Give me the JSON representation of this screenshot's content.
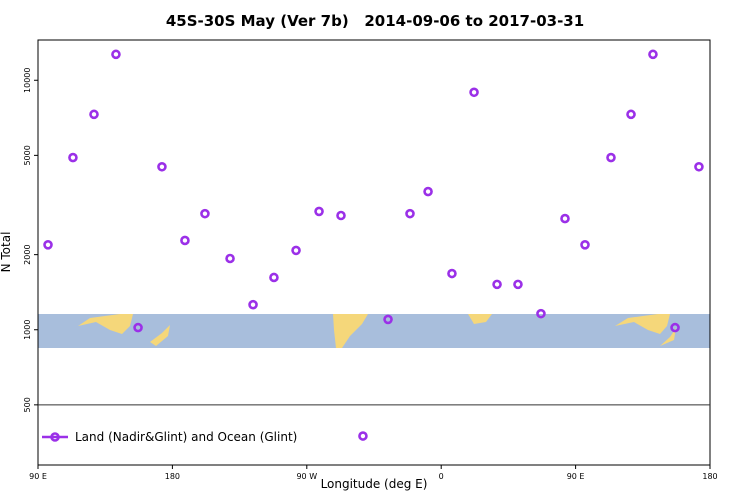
{
  "chart_data": {
    "type": "scatter",
    "title": "45S-30S May (Ver 7b)   2014-09-06 to 2017-03-31",
    "xlabel": "Longitude (deg E)",
    "ylabel": "N Total",
    "series": [
      {
        "name": "Land (Nadir&Glint) and Ocean (Glint)",
        "color": "#9b30e8",
        "x": [
          96.7,
          113.4,
          127.5,
          142.2,
          157,
          173,
          188.4,
          201.8,
          218.6,
          234,
          248,
          262.8,
          278.2,
          292.9,
          307.6,
          324.4,
          339.1,
          351.2,
          367.2,
          382,
          397.4,
          411.4,
          426.8,
          442.9,
          456.3,
          473.7,
          487.1,
          501.8,
          516.6,
          532.6
        ],
        "values": [
          2190,
          4900,
          7300,
          12700,
          1020,
          4500,
          2280,
          2920,
          1930,
          1260,
          1620,
          2080,
          2980,
          2870,
          375,
          1100,
          2920,
          3580,
          1680,
          8950,
          1520,
          1520,
          1160,
          2790,
          2190,
          4900,
          7300,
          12700,
          1020,
          4500
        ]
      }
    ],
    "xlim": [
      90,
      540
    ],
    "xticks": [
      {
        "value": 90,
        "label": "90 E"
      },
      180,
      {
        "value": 270,
        "label": "90 W"
      },
      {
        "value": 360,
        "label": "0"
      },
      {
        "value": 450,
        "label": "90 E"
      },
      {
        "value": 540,
        "label": "180"
      }
    ],
    "ylim": [
      287,
      14500
    ],
    "yticks": [
      500,
      1000,
      2000,
      5000,
      10000
    ],
    "log_y": true,
    "hline": 500,
    "legend": "lower left"
  }
}
